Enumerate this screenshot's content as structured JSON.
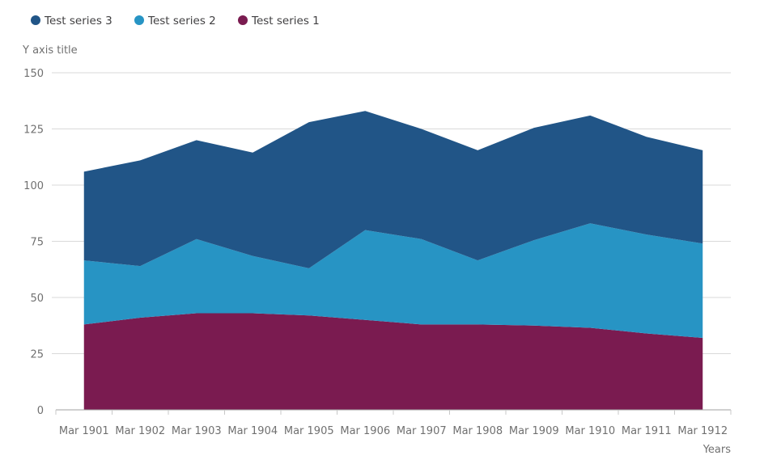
{
  "chart_data": {
    "type": "area",
    "stacked": true,
    "title": "",
    "xlabel": "Years",
    "ylabel": "Y axis title",
    "ylim": [
      0,
      150
    ],
    "yticks": [
      "0",
      "25",
      "50",
      "75",
      "100",
      "125",
      "150"
    ],
    "grid": true,
    "legend_position": "top-left",
    "categories": [
      "Mar 1901",
      "Mar 1902",
      "Mar 1903",
      "Mar 1904",
      "Mar 1905",
      "Mar 1906",
      "Mar 1907",
      "Mar 1908",
      "Mar 1909",
      "Mar 1910",
      "Mar 1911",
      "Mar 1912"
    ],
    "series": [
      {
        "name": "Test series 1",
        "color": "#7a1b50",
        "values": [
          38,
          41,
          43,
          43,
          42,
          40,
          38,
          38,
          37.5,
          36.5,
          34,
          32
        ]
      },
      {
        "name": "Test series 2",
        "color": "#2794c4",
        "values": [
          28.5,
          23,
          33,
          25.5,
          21,
          40,
          38,
          28.5,
          38,
          46.5,
          44,
          42
        ]
      },
      {
        "name": "Test series 3",
        "color": "#215587",
        "values": [
          39.5,
          47,
          44,
          46,
          65,
          53,
          49,
          49,
          50,
          48,
          43.5,
          41.5
        ]
      }
    ],
    "legend_order": [
      "Test series 3",
      "Test series 2",
      "Test series 1"
    ]
  }
}
